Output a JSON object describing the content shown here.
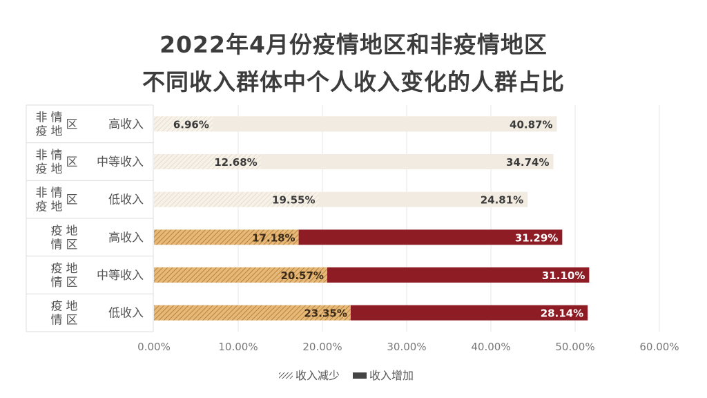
{
  "title_lines": [
    "2022年4月份疫情地区和非疫情地区",
    "不同收入群体中个人收入变化的人群占比"
  ],
  "chart_data": {
    "type": "bar",
    "orientation": "horizontal",
    "stacked": true,
    "title": "2022年4月份疫情地区和非疫情地区不同收入群体中个人收入变化的人群占比",
    "groups": [
      "非疫情地区",
      "非疫情地区",
      "非疫情地区",
      "疫情地区",
      "疫情地区",
      "疫情地区"
    ],
    "categories": [
      "高收入",
      "中等收入",
      "低收入",
      "高收入",
      "中等收入",
      "低收入"
    ],
    "series": [
      {
        "name": "收入减少",
        "values": [
          6.96,
          12.68,
          19.55,
          17.18,
          20.57,
          23.35
        ],
        "labels": [
          "6.96%",
          "12.68%",
          "19.55%",
          "17.18%",
          "20.57%",
          "23.35%"
        ]
      },
      {
        "name": "收入增加",
        "values": [
          40.87,
          34.74,
          24.81,
          31.29,
          31.1,
          28.14
        ],
        "labels": [
          "40.87%",
          "34.74%",
          "24.81%",
          "31.29%",
          "31.10%",
          "28.14%"
        ]
      }
    ],
    "xlim": [
      0,
      60
    ],
    "xticks": [
      0,
      10,
      20,
      30,
      40,
      50,
      60
    ],
    "xtick_labels": [
      "0.00%",
      "10.00%",
      "20.00%",
      "30.00%",
      "40.00%",
      "50.00%",
      "60.00%"
    ],
    "grid": true,
    "legend_position": "bottom",
    "colors": {
      "non_epidemic_decrease": "#f3ece0",
      "non_epidemic_increase": "#f1ebe1",
      "epidemic_decrease": "#d9a55e",
      "epidemic_increase": "#8e1c24"
    }
  }
}
